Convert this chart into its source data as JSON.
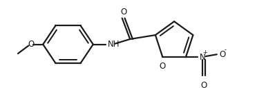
{
  "background_color": "#ffffff",
  "line_color": "#1a1a1a",
  "line_width": 1.6,
  "font_size": 8.5,
  "figsize": [
    3.85,
    1.34
  ],
  "dpi": 100,
  "xlim": [
    0,
    385
  ],
  "ylim": [
    0,
    134
  ]
}
